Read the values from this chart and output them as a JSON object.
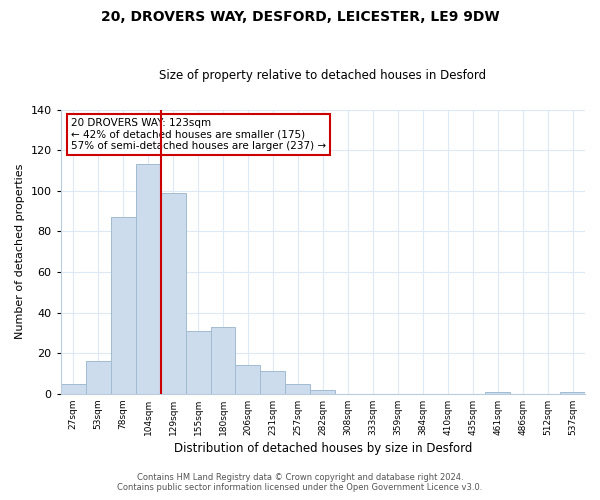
{
  "title": "20, DROVERS WAY, DESFORD, LEICESTER, LE9 9DW",
  "subtitle": "Size of property relative to detached houses in Desford",
  "xlabel": "Distribution of detached houses by size in Desford",
  "ylabel": "Number of detached properties",
  "bar_labels": [
    "27sqm",
    "53sqm",
    "78sqm",
    "104sqm",
    "129sqm",
    "155sqm",
    "180sqm",
    "206sqm",
    "231sqm",
    "257sqm",
    "282sqm",
    "308sqm",
    "333sqm",
    "359sqm",
    "384sqm",
    "410sqm",
    "435sqm",
    "461sqm",
    "486sqm",
    "512sqm",
    "537sqm"
  ],
  "bar_values": [
    5,
    16,
    87,
    113,
    99,
    31,
    33,
    14,
    11,
    5,
    2,
    0,
    0,
    0,
    0,
    0,
    0,
    1,
    0,
    0,
    1
  ],
  "bar_color": "#ccdcec",
  "bar_edge_color": "#a0bcd0",
  "ylim": [
    0,
    140
  ],
  "yticks": [
    0,
    20,
    40,
    60,
    80,
    100,
    120,
    140
  ],
  "vline_x_index": 3,
  "vline_color": "#cc0000",
  "annotation_title": "20 DROVERS WAY: 123sqm",
  "annotation_line1": "← 42% of detached houses are smaller (175)",
  "annotation_line2": "57% of semi-detached houses are larger (237) →",
  "annotation_box_color": "#ffffff",
  "annotation_box_edge": "#cc0000",
  "footer1": "Contains HM Land Registry data © Crown copyright and database right 2024.",
  "footer2": "Contains public sector information licensed under the Open Government Licence v3.0.",
  "background_color": "#ffffff",
  "grid_color": "#ddeaf5"
}
